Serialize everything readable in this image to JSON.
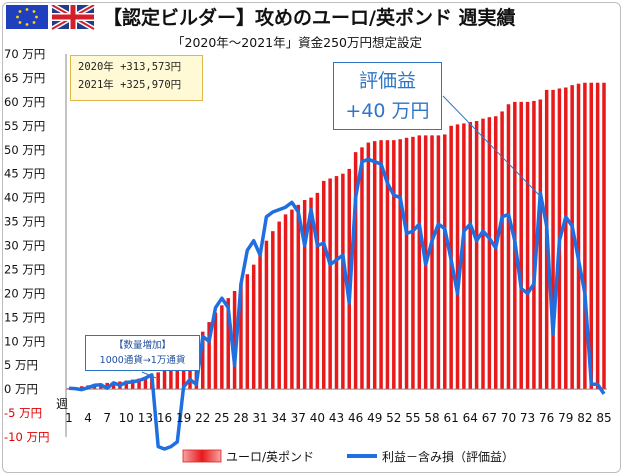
{
  "header": {
    "title": "【認定ビルダー】攻めのユーロ/英ポンド 週実績",
    "subtitle": "「2020年～2021年」資金250万円想定設定",
    "flags": [
      "eu-flag-icon",
      "uk-flag-icon"
    ]
  },
  "year_box": {
    "line1": "2020年 +313,573円",
    "line2": "2021年 +325,970円"
  },
  "callout": {
    "line1": "評価益",
    "line2": "+40 万円"
  },
  "note": {
    "line1": "【数量増加】",
    "line2": "1000通貨→1万通貨"
  },
  "colors": {
    "bar_fill": "#e8191b",
    "bar_fill_light": "#f6a3a3",
    "line": "#1f6fe0",
    "negative_tick": "#e00000",
    "callout_text": "#2e75c8"
  },
  "chart_data": {
    "type": "bar",
    "xlabel": "週",
    "ylabel": "",
    "ylim": [
      -10,
      70
    ],
    "yunit": "万円",
    "grid": false,
    "legend_position": "bottom",
    "y_ticks": [
      "70 万円",
      "65 万円",
      "60 万円",
      "55 万円",
      "50 万円",
      "45 万円",
      "40 万円",
      "35 万円",
      "30 万円",
      "25 万円",
      "20 万円",
      "15 万円",
      "10 万円",
      "5 万円",
      "0 万円",
      "-5 万円",
      "-10 万円"
    ],
    "x_ticks": [
      "1",
      "4",
      "7",
      "10",
      "13",
      "16",
      "19",
      "22",
      "25",
      "28",
      "31",
      "34",
      "37",
      "40",
      "43",
      "46",
      "49",
      "52",
      "55",
      "58",
      "61",
      "64",
      "67",
      "70",
      "73",
      "76",
      "79",
      "82",
      "85"
    ],
    "categories": [
      1,
      2,
      3,
      4,
      5,
      6,
      7,
      8,
      9,
      10,
      11,
      12,
      13,
      14,
      15,
      16,
      17,
      18,
      19,
      20,
      21,
      22,
      23,
      24,
      25,
      26,
      27,
      28,
      29,
      30,
      31,
      32,
      33,
      34,
      35,
      36,
      37,
      38,
      39,
      40,
      41,
      42,
      43,
      44,
      45,
      46,
      47,
      48,
      49,
      50,
      51,
      52,
      53,
      54,
      55,
      56,
      57,
      58,
      59,
      60,
      61,
      62,
      63,
      64,
      65,
      66,
      67,
      68,
      69,
      70,
      71,
      72,
      73,
      74,
      75,
      76,
      77,
      78,
      79,
      80,
      81,
      82,
      83,
      84,
      85
    ],
    "series": [
      {
        "name": "ユーロ/英ポンド",
        "kind": "bar",
        "values": [
          0.2,
          0.4,
          0.6,
          0.8,
          1.0,
          1.2,
          1.3,
          1.5,
          1.6,
          1.8,
          2.0,
          2.2,
          2.4,
          2.8,
          3.5,
          4.5,
          5.5,
          6.0,
          6.5,
          8.0,
          10.0,
          12.0,
          14.0,
          16.0,
          17.5,
          19.0,
          20.5,
          22.0,
          24.0,
          26.0,
          28.5,
          31.0,
          33.0,
          35.0,
          36.5,
          37.5,
          38.5,
          39.5,
          40.0,
          41.0,
          43.5,
          44.0,
          44.5,
          45.0,
          46.0,
          49.5,
          50.5,
          51.5,
          51.8,
          52.0,
          52.0,
          52.0,
          52.2,
          52.5,
          52.7,
          53.0,
          53.0,
          53.0,
          53.0,
          53.2,
          55.0,
          55.3,
          55.5,
          55.8,
          56.0,
          56.5,
          56.8,
          57.0,
          58.0,
          59.5,
          60.0,
          60.0,
          60.0,
          60.2,
          60.5,
          62.5,
          62.5,
          62.8,
          63.0,
          63.5,
          63.8,
          64.0,
          64.0,
          64.0,
          64.0
        ]
      },
      {
        "name": "利益－含み損（評価益）",
        "kind": "line",
        "values": [
          0.2,
          0.1,
          -0.1,
          0.3,
          0.8,
          0.9,
          0.2,
          1.3,
          0.8,
          1.4,
          1.5,
          1.8,
          2.3,
          3.0,
          -12.0,
          -12.5,
          -12.0,
          -11.0,
          0.5,
          2.0,
          1.0,
          11.0,
          10.0,
          17.0,
          19.0,
          17.0,
          5.0,
          22.0,
          29.0,
          31.0,
          28.0,
          36.0,
          37.0,
          37.5,
          38.0,
          39.0,
          37.0,
          30.0,
          37.5,
          30.0,
          30.5,
          26.0,
          27.0,
          28.0,
          18.0,
          40.0,
          47.5,
          48.0,
          47.5,
          47.0,
          43.0,
          40.5,
          40.0,
          32.5,
          33.0,
          34.5,
          26.0,
          31.0,
          34.5,
          33.5,
          27.0,
          20.0,
          33.0,
          34.5,
          31.0,
          33.0,
          31.5,
          29.5,
          36.0,
          36.5,
          31.0,
          21.0,
          20.0,
          22.0,
          41.0,
          34.0,
          11.5,
          31.0,
          36.0,
          34.0,
          27.0,
          20.0,
          1.0,
          1.0,
          -1.0
        ]
      }
    ]
  }
}
